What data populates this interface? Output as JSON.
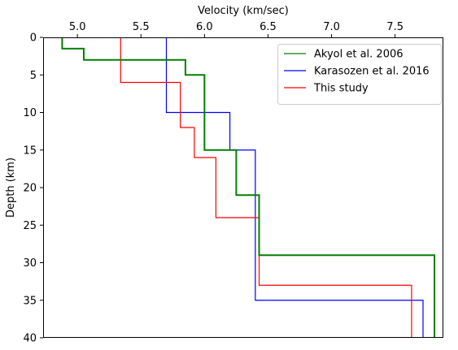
{
  "chart_data": {
    "type": "line",
    "title": "",
    "xlabel": "Velocity (km/sec)",
    "ylabel": "Depth (km)",
    "xlim": [
      4.73,
      7.88
    ],
    "ylim": [
      0,
      40
    ],
    "x_axis_position": "top",
    "y_axis_inverted": true,
    "x_ticks": [
      {
        "value": 5.0,
        "label": "5.0"
      },
      {
        "value": 5.5,
        "label": "5.5"
      },
      {
        "value": 6.0,
        "label": "6.0"
      },
      {
        "value": 6.5,
        "label": "6.5"
      },
      {
        "value": 7.0,
        "label": "7.0"
      },
      {
        "value": 7.5,
        "label": "7.5"
      }
    ],
    "y_ticks": [
      {
        "value": 0,
        "label": "0"
      },
      {
        "value": 5,
        "label": "5"
      },
      {
        "value": 10,
        "label": "10"
      },
      {
        "value": 15,
        "label": "15"
      },
      {
        "value": 20,
        "label": "20"
      },
      {
        "value": 25,
        "label": "25"
      },
      {
        "value": 30,
        "label": "30"
      },
      {
        "value": 35,
        "label": "35"
      },
      {
        "value": 40,
        "label": "40"
      }
    ],
    "grid": false,
    "legend_position": "top-right",
    "series": [
      {
        "name": "Akyol et al. 2006",
        "color": "#008000",
        "points": [
          [
            4.88,
            0
          ],
          [
            4.88,
            1.5
          ],
          [
            5.05,
            1.5
          ],
          [
            5.05,
            3.0
          ],
          [
            5.85,
            3.0
          ],
          [
            5.85,
            5.0
          ],
          [
            6.0,
            5.0
          ],
          [
            6.0,
            15.0
          ],
          [
            6.25,
            15.0
          ],
          [
            6.25,
            21.0
          ],
          [
            6.43,
            21.0
          ],
          [
            6.43,
            29.0
          ],
          [
            7.81,
            29.0
          ],
          [
            7.81,
            40.0
          ]
        ]
      },
      {
        "name": "Karasozen et al. 2016",
        "color": "#0000ff",
        "points": [
          [
            5.7,
            0
          ],
          [
            5.7,
            10.0
          ],
          [
            6.2,
            10.0
          ],
          [
            6.2,
            15.0
          ],
          [
            6.4,
            15.0
          ],
          [
            6.4,
            35.0
          ],
          [
            7.72,
            35.0
          ],
          [
            7.72,
            40.0
          ]
        ]
      },
      {
        "name": "This study",
        "color": "#ff0000",
        "points": [
          [
            5.34,
            0
          ],
          [
            5.34,
            6.0
          ],
          [
            5.81,
            6.0
          ],
          [
            5.81,
            12.0
          ],
          [
            5.92,
            12.0
          ],
          [
            5.92,
            16.0
          ],
          [
            6.09,
            16.0
          ],
          [
            6.09,
            24.0
          ],
          [
            6.43,
            24.0
          ],
          [
            6.43,
            33.0
          ],
          [
            7.63,
            33.0
          ],
          [
            7.63,
            40.0
          ]
        ]
      }
    ]
  }
}
